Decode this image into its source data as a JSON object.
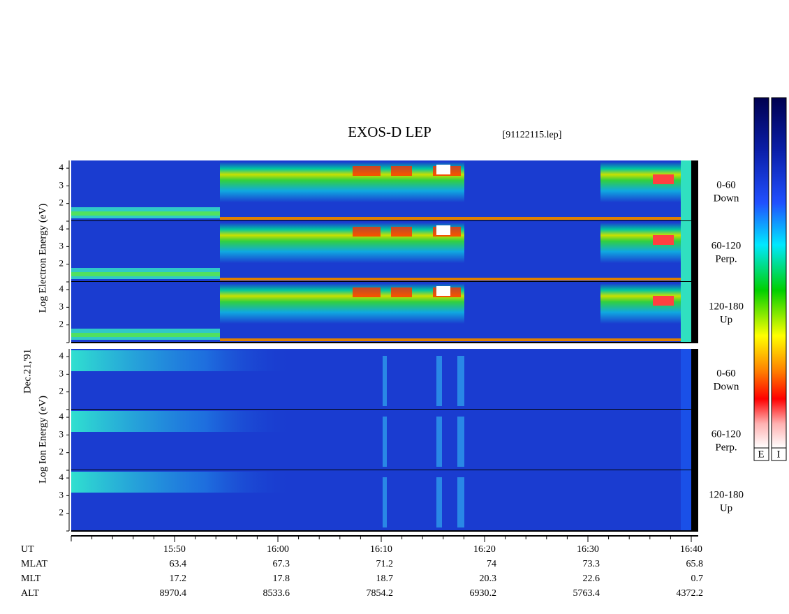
{
  "chart_data": {
    "type": "spectrogram",
    "title": "EXOS-D LEP",
    "file_label": "[91122115.lep]",
    "date_label": "Dec.21,'91",
    "groups": [
      {
        "ylabel": "Log Electron Energy (eV)",
        "panels": [
          {
            "pitch": "0-60",
            "direction": "Down"
          },
          {
            "pitch": "60-120",
            "direction": "Perp."
          },
          {
            "pitch": "120-180",
            "direction": "Up"
          }
        ]
      },
      {
        "ylabel": "Log Ion Energy (eV)",
        "panels": [
          {
            "pitch": "0-60",
            "direction": "Down"
          },
          {
            "pitch": "60-120",
            "direction": "Perp."
          },
          {
            "pitch": "120-180",
            "direction": "Up"
          }
        ]
      }
    ],
    "ylim": [
      1,
      4.2
    ],
    "yticks": [
      2,
      3,
      4
    ],
    "x_labels": [
      "15:50",
      "16:00",
      "16:10",
      "16:20",
      "16:30",
      "16:40"
    ],
    "orbit": {
      "row_labels": [
        "UT",
        "MLAT",
        "MLT",
        "ALT"
      ],
      "MLAT": [
        63.4,
        67.3,
        71.2,
        74.0,
        73.3,
        65.8
      ],
      "MLT": [
        17.2,
        17.8,
        18.7,
        20.3,
        22.6,
        0.7
      ],
      "ALT": [
        8970.4,
        8533.6,
        7854.2,
        6930.2,
        5763.4,
        4372.2
      ]
    },
    "colorbar_labels": [
      "E",
      "I"
    ]
  }
}
